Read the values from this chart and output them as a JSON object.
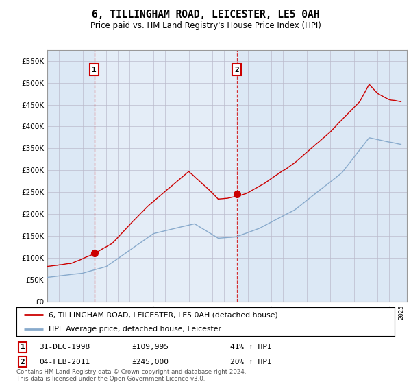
{
  "title": "6, TILLINGHAM ROAD, LEICESTER, LE5 0AH",
  "subtitle": "Price paid vs. HM Land Registry's House Price Index (HPI)",
  "red_line_label": "6, TILLINGHAM ROAD, LEICESTER, LE5 0AH (detached house)",
  "blue_line_label": "HPI: Average price, detached house, Leicester",
  "sale1_date": "31-DEC-1998",
  "sale1_price": 109995,
  "sale1_hpi_pct": "41% ↑ HPI",
  "sale1_year": 1998.99,
  "sale2_date": "04-FEB-2011",
  "sale2_price": 245000,
  "sale2_hpi_pct": "20% ↑ HPI",
  "sale2_year": 2011.09,
  "footer": "Contains HM Land Registry data © Crown copyright and database right 2024.\nThis data is licensed under the Open Government Licence v3.0.",
  "ylim": [
    0,
    575000
  ],
  "yticks": [
    0,
    50000,
    100000,
    150000,
    200000,
    250000,
    300000,
    350000,
    400000,
    450000,
    500000,
    550000
  ],
  "bg_color": "#dce8f5",
  "shade_color": "#cce0f0",
  "red_color": "#cc0000",
  "blue_color": "#88aacc",
  "grid_color": "#bbbbcc",
  "sale1_red_dot": 109995,
  "sale2_red_dot": 245000
}
